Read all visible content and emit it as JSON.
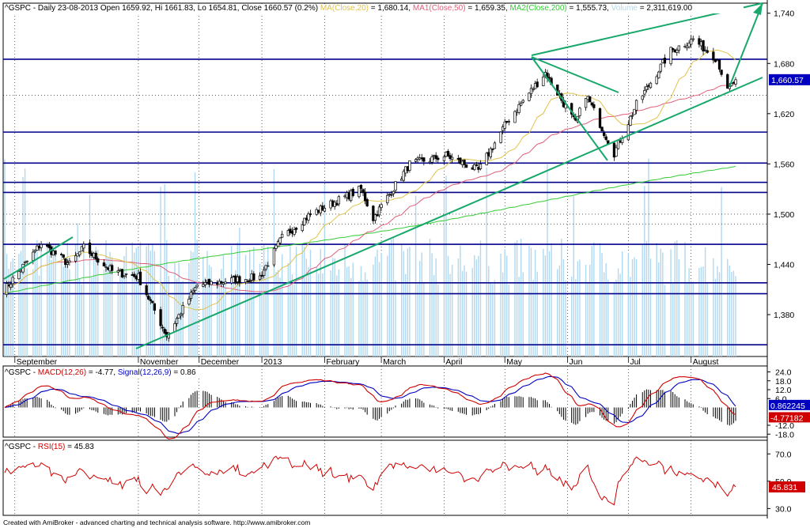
{
  "header": {
    "main_parts": [
      {
        "text": "^GSPC - Daily 23-08-2013 Open 1659.92, Hi 1661.83, Lo 1654.81, Close 1660.57 (0.2%) ",
        "color": "#000000"
      },
      {
        "text": "MA(Close,20)",
        "color": "#e0c24a"
      },
      {
        "text": " = 1,680.14, ",
        "color": "#000000"
      },
      {
        "text": "MA1(Close,50)",
        "color": "#e0607a"
      },
      {
        "text": " = 1,659.35, ",
        "color": "#000000"
      },
      {
        "text": "MA2(Close,200)",
        "color": "#33cc33"
      },
      {
        "text": " = 1,555.73, ",
        "color": "#000000"
      },
      {
        "text": "Volume",
        "color": "#b0d8f0"
      },
      {
        "text": " = 2,311,619.00",
        "color": "#000000"
      }
    ],
    "macd_parts": [
      {
        "text": "^GSPC - ",
        "color": "#000000"
      },
      {
        "text": "MACD(12,26)",
        "color": "#d00000"
      },
      {
        "text": " = -4.77, ",
        "color": "#000000"
      },
      {
        "text": "Signal(12,26,9)",
        "color": "#0000c0"
      },
      {
        "text": " = 0.86",
        "color": "#000000"
      }
    ],
    "rsi_parts": [
      {
        "text": "^GSPC - ",
        "color": "#000000"
      },
      {
        "text": "RSI(15)",
        "color": "#d00000"
      },
      {
        "text": " = 45.83",
        "color": "#000000"
      }
    ]
  },
  "footer": "Created with AmiBroker - advanced charting and technical analysis software. http://www.amibroker.com",
  "colors": {
    "candle": "#000000",
    "ma20": "#e0c24a",
    "ma50": "#e0607a",
    "ma200": "#33cc33",
    "volume": "#b0d8f0",
    "hline": "#00008b",
    "trend": "#17a86b",
    "macd": "#d00000",
    "signal": "#0000c0",
    "rsi": "#d00000",
    "last_price_bg": "#0000c0",
    "macd_box_bg": "#0000c0",
    "macd2_box_bg": "#d00000",
    "rsi_box_bg": "#d00000"
  },
  "chart_data": [
    {
      "type": "candlestick",
      "title": "^GSPC - Daily 23-08-2013",
      "x_labels": [
        "September",
        "November",
        "December",
        "2013",
        "February",
        "March",
        "April",
        "May",
        "Jun",
        "Jul",
        "August"
      ],
      "y_ticks": [
        1380,
        1440,
        1500,
        1560,
        1620,
        1680,
        1740
      ],
      "y_tick_labels": [
        "1,380",
        "1,440",
        "1,500",
        "1,560",
        "1,620",
        "1,680",
        "1,740"
      ],
      "ylim": [
        1330,
        1752
      ],
      "last_close_label": "1,660.57",
      "last_close": 1660.57,
      "horizontal_levels": [
        1685,
        1598,
        1561,
        1538,
        1526,
        1464,
        1418,
        1405,
        1344
      ],
      "dotted_levels": [
        1500,
        1488,
        1642
      ],
      "close_path": [
        {
          "date": "2012-08-27",
          "close": 1410
        },
        {
          "date": "2012-09-14",
          "close": 1465
        },
        {
          "date": "2012-09-28",
          "close": 1440
        },
        {
          "date": "2012-10-05",
          "close": 1460
        },
        {
          "date": "2012-10-19",
          "close": 1432
        },
        {
          "date": "2012-11-01",
          "close": 1425
        },
        {
          "date": "2012-11-15",
          "close": 1355
        },
        {
          "date": "2012-11-30",
          "close": 1415
        },
        {
          "date": "2012-12-14",
          "close": 1420
        },
        {
          "date": "2012-12-31",
          "close": 1425
        },
        {
          "date": "2013-01-11",
          "close": 1472
        },
        {
          "date": "2013-01-25",
          "close": 1500
        },
        {
          "date": "2013-02-19",
          "close": 1530
        },
        {
          "date": "2013-02-25",
          "close": 1495
        },
        {
          "date": "2013-03-15",
          "close": 1560
        },
        {
          "date": "2013-04-02",
          "close": 1570
        },
        {
          "date": "2013-04-18",
          "close": 1552
        },
        {
          "date": "2013-05-03",
          "close": 1614
        },
        {
          "date": "2013-05-21",
          "close": 1669
        },
        {
          "date": "2013-06-05",
          "close": 1608
        },
        {
          "date": "2013-06-10",
          "close": 1643
        },
        {
          "date": "2013-06-24",
          "close": 1573
        },
        {
          "date": "2013-07-05",
          "close": 1631
        },
        {
          "date": "2013-07-22",
          "close": 1695
        },
        {
          "date": "2013-08-02",
          "close": 1709
        },
        {
          "date": "2013-08-14",
          "close": 1685
        },
        {
          "date": "2013-08-19",
          "close": 1646
        },
        {
          "date": "2013-08-23",
          "close": 1660.57
        }
      ]
    },
    {
      "type": "line",
      "title": "MACD(12,26) / Signal(12,26,9)",
      "y_ticks": [
        24,
        18,
        12,
        6,
        -12,
        -18
      ],
      "y_tick_labels": [
        "24.0",
        "18.0",
        "12.0",
        "6.0",
        "-12.0",
        "-18.0"
      ],
      "ylim": [
        -20,
        28
      ],
      "series": [
        {
          "name": "MACD(12,26)",
          "last": -4.77
        },
        {
          "name": "Signal(12,26,9)",
          "last": 0.86
        }
      ],
      "last_labels": [
        "0.862245",
        "-4.77182"
      ]
    },
    {
      "type": "line",
      "title": "RSI(15)",
      "y_ticks": [
        70,
        50,
        30
      ],
      "y_tick_labels": [
        "70.0",
        "50.0",
        "30.0"
      ],
      "ylim": [
        25,
        80
      ],
      "series": [
        {
          "name": "RSI(15)",
          "last": 45.83
        }
      ],
      "last_label": "45.831"
    }
  ]
}
